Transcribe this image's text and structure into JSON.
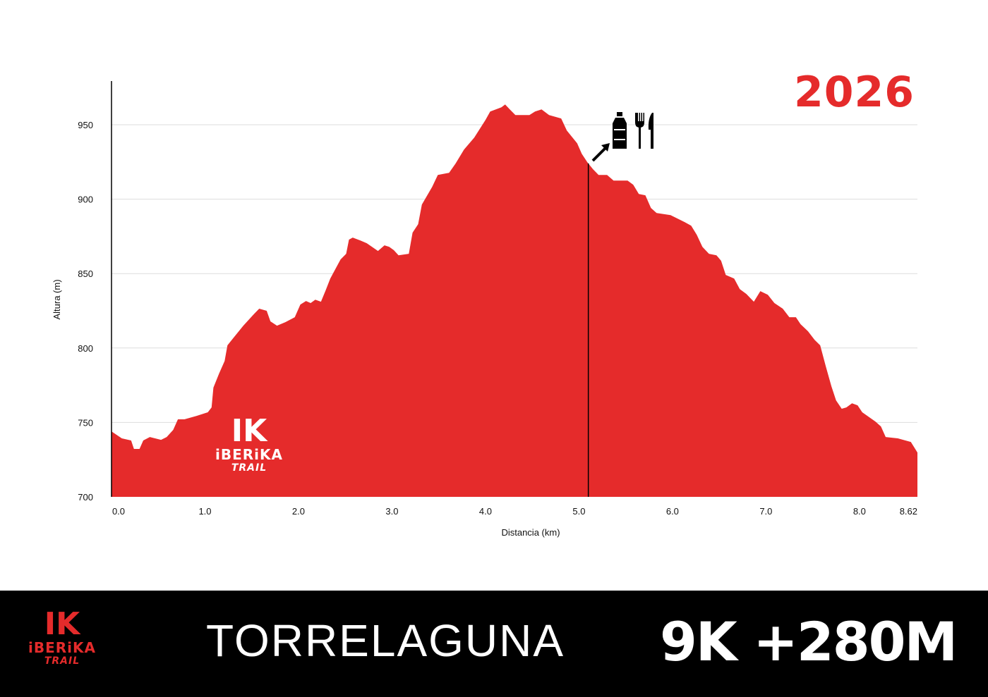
{
  "year": "2026",
  "footer": {
    "race_name": "TORRELAGUNA",
    "distance": "9K +280M"
  },
  "logo": {
    "mark": "IK",
    "brand": "iBERiKA",
    "sub": "TRAIL"
  },
  "colors": {
    "profile": "#e52b2b",
    "grid": "#dddddd",
    "footer_bg": "#000000"
  },
  "aid_station": {
    "km": 5.1,
    "icons": [
      "water-bottle-icon",
      "fork-icon",
      "knife-icon"
    ]
  },
  "chart_data": {
    "type": "area",
    "title": "",
    "xlabel": "Distancia (km)",
    "ylabel": "Altura (m)",
    "xlim": [
      0,
      8.62
    ],
    "ylim": [
      700,
      975
    ],
    "grid": true,
    "x_ticks": [
      "0.0",
      "1.0",
      "2.0",
      "3.0",
      "4.0",
      "5.0",
      "6.0",
      "7.0",
      "8.0",
      "8.62"
    ],
    "y_ticks": [
      "700",
      "750",
      "800",
      "850",
      "900",
      "950"
    ],
    "series": [
      {
        "name": "Elevation",
        "points": [
          [
            0.0,
            744.0
          ],
          [
            0.11,
            739.3
          ],
          [
            0.21,
            737.9
          ],
          [
            0.24,
            732.2
          ],
          [
            0.3,
            732.2
          ],
          [
            0.34,
            737.9
          ],
          [
            0.41,
            740.2
          ],
          [
            0.53,
            738.3
          ],
          [
            0.59,
            740.2
          ],
          [
            0.66,
            745.0
          ],
          [
            0.71,
            752.1
          ],
          [
            0.78,
            752.1
          ],
          [
            0.91,
            754.4
          ],
          [
            1.03,
            756.8
          ],
          [
            1.07,
            760.1
          ],
          [
            1.09,
            773.4
          ],
          [
            1.15,
            782.8
          ],
          [
            1.21,
            791.3
          ],
          [
            1.24,
            801.8
          ],
          [
            1.3,
            806.5
          ],
          [
            1.41,
            815.0
          ],
          [
            1.52,
            822.6
          ],
          [
            1.58,
            826.4
          ],
          [
            1.66,
            825.0
          ],
          [
            1.7,
            817.9
          ],
          [
            1.77,
            815.0
          ],
          [
            1.86,
            817.4
          ],
          [
            1.96,
            820.7
          ],
          [
            2.02,
            829.2
          ],
          [
            2.08,
            831.6
          ],
          [
            2.13,
            830.2
          ],
          [
            2.18,
            832.5
          ],
          [
            2.24,
            831.1
          ],
          [
            2.29,
            838.7
          ],
          [
            2.34,
            846.7
          ],
          [
            2.45,
            859.5
          ],
          [
            2.51,
            863.3
          ],
          [
            2.54,
            872.8
          ],
          [
            2.58,
            874.2
          ],
          [
            2.66,
            872.3
          ],
          [
            2.73,
            870.4
          ],
          [
            2.85,
            865.2
          ],
          [
            2.92,
            869.0
          ],
          [
            2.97,
            868.0
          ],
          [
            3.02,
            865.7
          ],
          [
            3.07,
            862.3
          ],
          [
            3.18,
            863.3
          ],
          [
            3.22,
            877.5
          ],
          [
            3.28,
            883.2
          ],
          [
            3.32,
            896.4
          ],
          [
            3.43,
            908.3
          ],
          [
            3.49,
            916.3
          ],
          [
            3.61,
            917.7
          ],
          [
            3.68,
            923.9
          ],
          [
            3.77,
            933.3
          ],
          [
            3.88,
            941.4
          ],
          [
            4.0,
            953.2
          ],
          [
            4.05,
            958.9
          ],
          [
            4.17,
            961.7
          ],
          [
            4.21,
            963.6
          ],
          [
            4.26,
            960.3
          ],
          [
            4.32,
            956.5
          ],
          [
            4.47,
            956.5
          ],
          [
            4.53,
            958.9
          ],
          [
            4.6,
            960.3
          ],
          [
            4.68,
            956.5
          ],
          [
            4.81,
            954.2
          ],
          [
            4.87,
            946.1
          ],
          [
            4.98,
            937.6
          ],
          [
            5.03,
            930.5
          ],
          [
            5.09,
            924.8
          ],
          [
            5.15,
            920.1
          ],
          [
            5.21,
            916.3
          ],
          [
            5.3,
            916.3
          ],
          [
            5.37,
            912.5
          ],
          [
            5.52,
            912.5
          ],
          [
            5.58,
            909.7
          ],
          [
            5.64,
            903.5
          ],
          [
            5.71,
            902.6
          ],
          [
            5.77,
            894.1
          ],
          [
            5.83,
            890.7
          ],
          [
            5.98,
            889.3
          ],
          [
            6.13,
            884.6
          ],
          [
            6.2,
            882.2
          ],
          [
            6.26,
            876.1
          ],
          [
            6.32,
            868.0
          ],
          [
            6.39,
            863.3
          ],
          [
            6.47,
            862.3
          ],
          [
            6.52,
            858.6
          ],
          [
            6.57,
            849.1
          ],
          [
            6.66,
            846.7
          ],
          [
            6.72,
            839.6
          ],
          [
            6.79,
            836.3
          ],
          [
            6.87,
            831.1
          ],
          [
            6.94,
            838.2
          ],
          [
            7.02,
            835.8
          ],
          [
            7.09,
            830.2
          ],
          [
            7.18,
            826.4
          ],
          [
            7.25,
            820.7
          ],
          [
            7.32,
            820.7
          ],
          [
            7.37,
            816.0
          ],
          [
            7.45,
            811.2
          ],
          [
            7.52,
            805.5
          ],
          [
            7.58,
            801.8
          ],
          [
            7.64,
            787.6
          ],
          [
            7.7,
            774.3
          ],
          [
            7.75,
            764.8
          ],
          [
            7.81,
            759.2
          ],
          [
            7.86,
            760.1
          ],
          [
            7.92,
            762.9
          ],
          [
            7.98,
            761.5
          ],
          [
            8.03,
            756.8
          ],
          [
            8.17,
            750.6
          ],
          [
            8.23,
            747.3
          ],
          [
            8.28,
            740.2
          ],
          [
            8.41,
            739.3
          ],
          [
            8.55,
            736.9
          ],
          [
            8.62,
            729.8
          ]
        ]
      }
    ]
  }
}
